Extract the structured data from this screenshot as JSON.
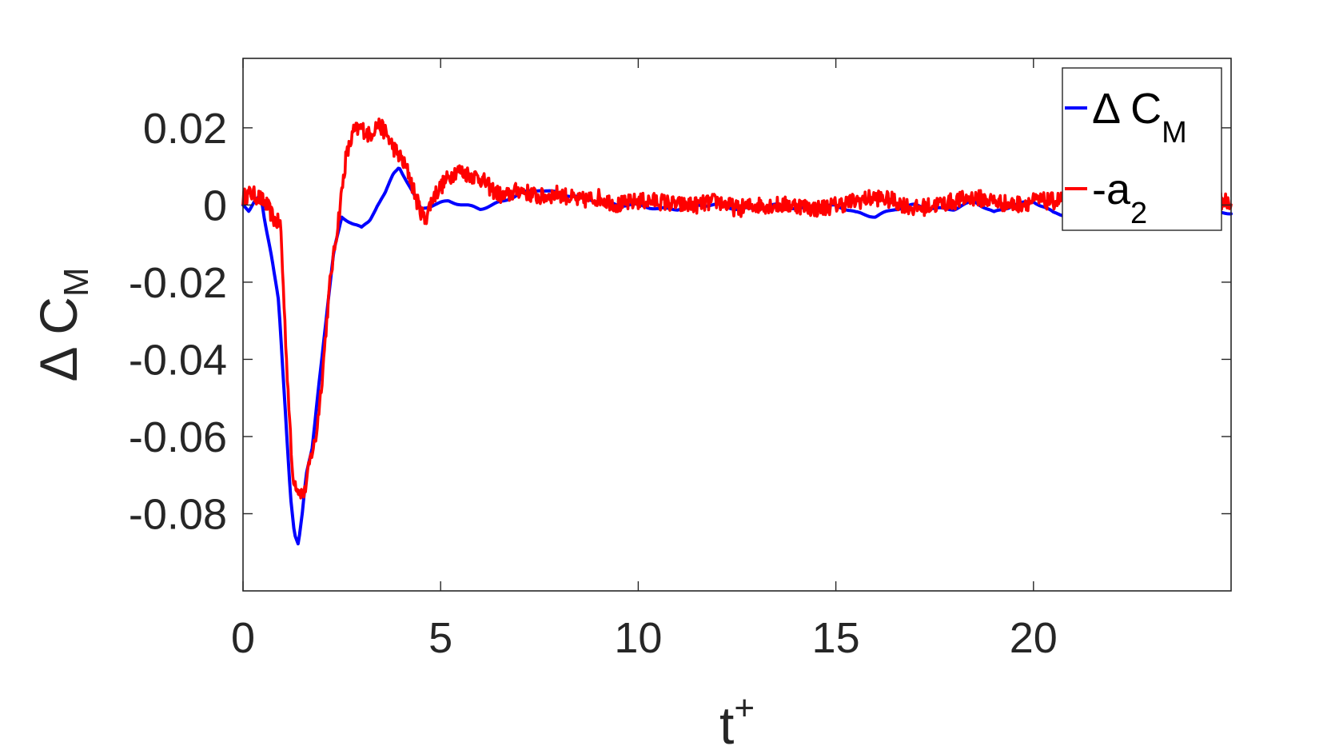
{
  "chart_data": {
    "type": "line",
    "title": "",
    "xlabel": {
      "main": "t",
      "superscript": "+"
    },
    "ylabel": {
      "main": "Δ C",
      "subscript": "M"
    },
    "xlim": [
      0,
      25
    ],
    "ylim": [
      -0.1,
      0.038
    ],
    "x_ticks": [
      0,
      5,
      10,
      15,
      20
    ],
    "x_tick_labels": [
      "0",
      "5",
      "10",
      "15",
      "20"
    ],
    "y_ticks": [
      -0.08,
      -0.06,
      -0.04,
      -0.02,
      0,
      0.02
    ],
    "y_tick_labels": [
      "-0.08",
      "-0.06",
      "-0.04",
      "-0.02",
      "0",
      "0.02"
    ],
    "grid": false,
    "legend_position": "top-right",
    "series": [
      {
        "name": "Δ C_M",
        "legend_main": "Δ C",
        "legend_sub": "M",
        "color": "#0000ff",
        "style": "smooth",
        "x": [
          0,
          0.15,
          0.3,
          0.45,
          0.55,
          0.7,
          0.9,
          1.05,
          1.2,
          1.3,
          1.4,
          1.5,
          1.6,
          1.75,
          1.9,
          2.1,
          2.3,
          2.5,
          2.65,
          2.8,
          3.0,
          3.2,
          3.4,
          3.6,
          3.8,
          3.95,
          4.1,
          4.3,
          4.5,
          4.8,
          5.2,
          5.6,
          6.0,
          6.3,
          6.6,
          7.0,
          7.5,
          8.0,
          8.5,
          9.0,
          9.5,
          10.0,
          10.5,
          11.0,
          11.5,
          12.0,
          12.5,
          13.0,
          13.5,
          14.0,
          14.5,
          15.0,
          15.5,
          16.0,
          16.5,
          17.0,
          17.5,
          18.0,
          18.5,
          19.0,
          19.5,
          20.0,
          20.5,
          21.0,
          21.5,
          22.0,
          22.5,
          23.0,
          23.5,
          24.0,
          24.5,
          25.0
        ],
        "y": [
          0.0,
          -0.002,
          0.001,
          0.003,
          -0.004,
          -0.012,
          -0.025,
          -0.05,
          -0.075,
          -0.085,
          -0.088,
          -0.08,
          -0.07,
          -0.063,
          -0.048,
          -0.03,
          -0.012,
          -0.003,
          -0.004,
          -0.005,
          -0.006,
          -0.004,
          0.0,
          0.003,
          0.008,
          0.01,
          0.007,
          0.003,
          -0.001,
          0.0,
          0.001,
          0.0,
          -0.001,
          0.0,
          0.001,
          0.003,
          0.004,
          0.003,
          0.002,
          0.001,
          0.0,
          0.0,
          -0.001,
          -0.001,
          0.0,
          0.0,
          -0.001,
          -0.001,
          0.0,
          -0.001,
          -0.001,
          0.0,
          -0.002,
          -0.003,
          -0.001,
          0.0,
          -0.001,
          -0.001,
          0.001,
          -0.002,
          0.0,
          0.001,
          -0.002,
          -0.003,
          -0.002,
          -0.001,
          0.0,
          -0.002,
          -0.002,
          -0.001,
          -0.002,
          -0.002
        ]
      },
      {
        "name": "-a_2",
        "legend_main": "-a",
        "legend_sub": "2",
        "color": "#ff0000",
        "style": "noisy",
        "x": [
          0,
          0.2,
          0.4,
          0.6,
          0.8,
          0.95,
          1.1,
          1.25,
          1.4,
          1.55,
          1.7,
          1.85,
          2.0,
          2.2,
          2.4,
          2.6,
          2.8,
          3.0,
          3.2,
          3.4,
          3.6,
          3.8,
          4.0,
          4.2,
          4.4,
          4.6,
          4.8,
          5.1,
          5.4,
          5.7,
          6.0,
          6.3,
          6.6,
          7.0,
          7.5,
          8.0,
          8.5,
          9.0,
          9.5,
          10.0,
          10.5,
          11.0,
          11.5,
          12.0,
          12.5,
          13.0,
          13.5,
          14.0,
          14.5,
          15.0,
          15.5,
          16.0,
          16.5,
          17.0,
          17.5,
          18.0,
          18.5,
          19.0,
          19.5,
          20.0,
          20.5,
          21.0,
          21.5,
          22.0,
          22.5,
          23.0,
          23.5,
          24.0,
          24.5,
          25.0
        ],
        "y": [
          0.002,
          0.003,
          0.002,
          0.0,
          -0.004,
          -0.005,
          -0.04,
          -0.07,
          -0.074,
          -0.075,
          -0.066,
          -0.06,
          -0.045,
          -0.02,
          -0.005,
          0.012,
          0.019,
          0.02,
          0.018,
          0.021,
          0.019,
          0.015,
          0.012,
          0.008,
          0.001,
          -0.004,
          0.002,
          0.006,
          0.009,
          0.008,
          0.007,
          0.004,
          0.002,
          0.004,
          0.002,
          0.003,
          0.001,
          0.002,
          0.0,
          0.001,
          0.001,
          0.0,
          0.0,
          0.001,
          -0.001,
          0.0,
          0.0,
          0.0,
          -0.001,
          0.0,
          0.001,
          0.002,
          0.001,
          -0.001,
          0.0,
          0.001,
          0.002,
          0.001,
          0.0,
          0.001,
          0.001,
          0.002,
          0.001,
          0.001,
          0.002,
          0.001,
          0.001,
          0.0,
          0.001,
          0.001
        ]
      }
    ]
  }
}
